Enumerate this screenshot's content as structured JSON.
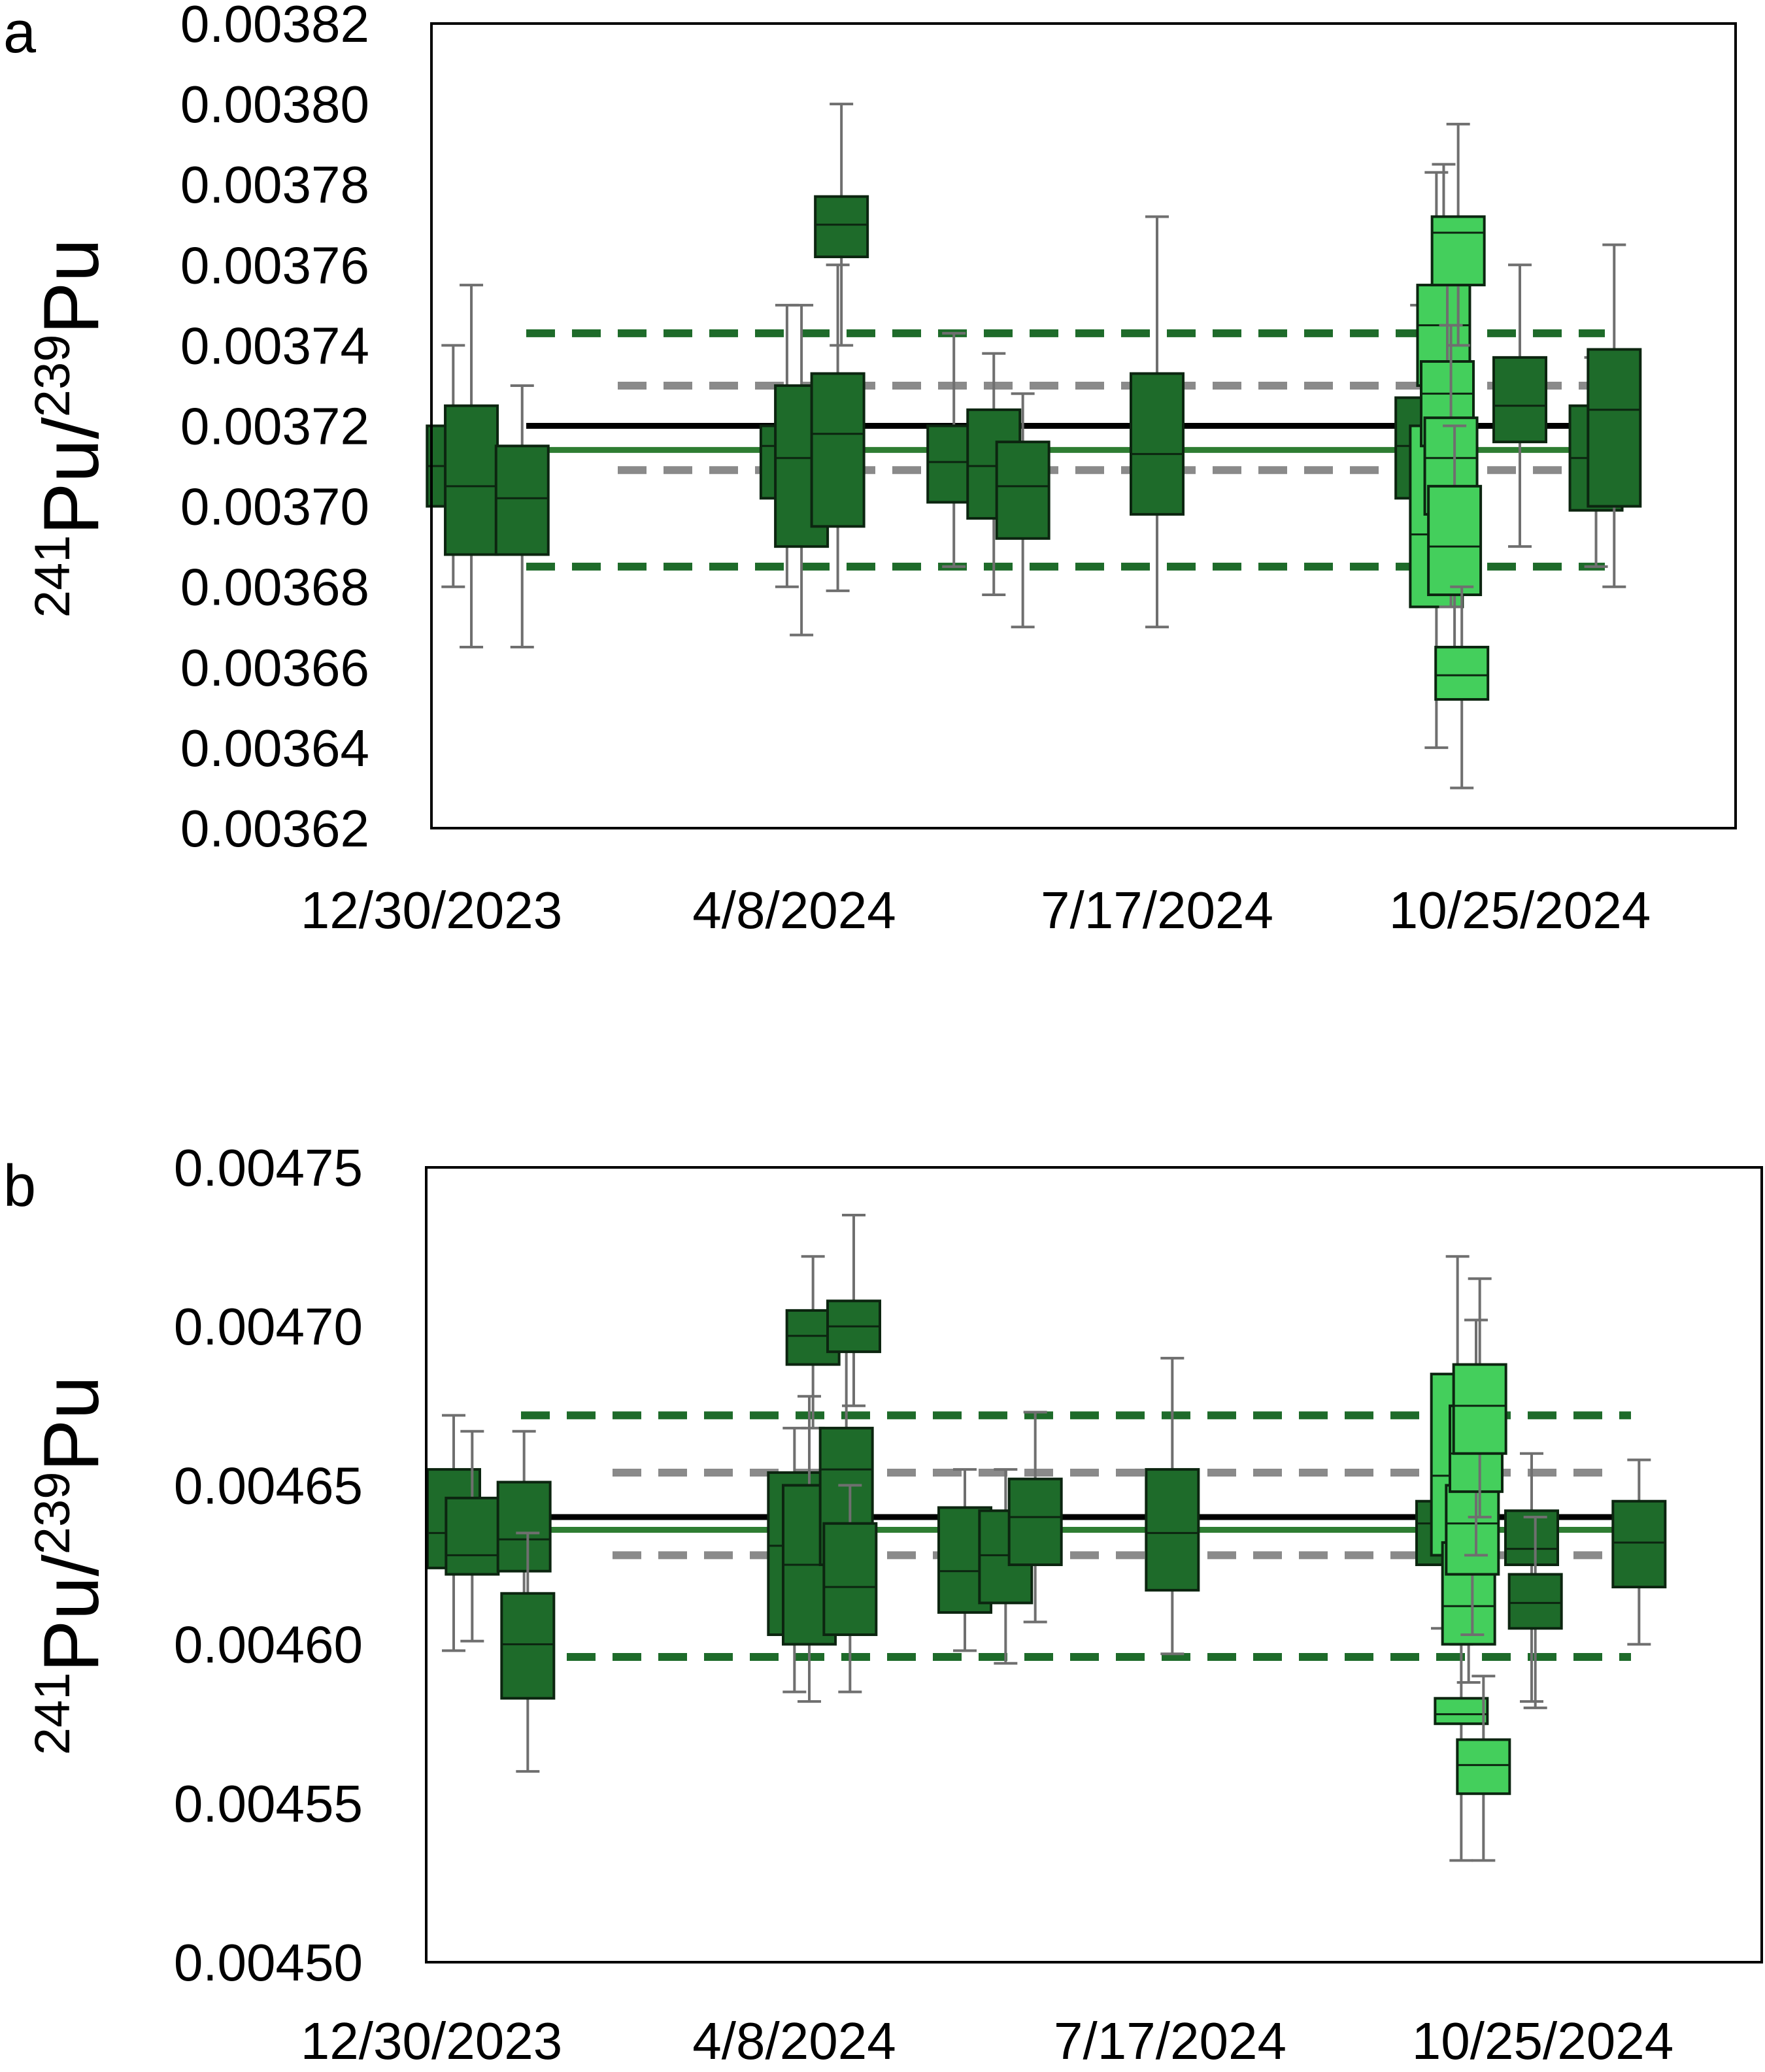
{
  "colors": {
    "dark_green": "#1e6b2a",
    "light_green": "#44cf5c",
    "box_stroke": "#0c2510",
    "whisker": "#6f6f6f",
    "mean_line": "#000000",
    "fit_line": "#2e7d32",
    "limit_inner": "#8a8a8a",
    "limit_outer": "#1e6b2a"
  },
  "chart_data": [
    {
      "panel": "a",
      "type": "box",
      "ylabel": {
        "sup1": "241",
        "mid": "Pu/",
        "sup2": "239",
        "end": "Pu"
      },
      "ylim": [
        0.00362,
        0.00382
      ],
      "yticks": [
        "0.00362",
        "0.00364",
        "0.00366",
        "0.00368",
        "0.00370",
        "0.00372",
        "0.00374",
        "0.00376",
        "0.00378",
        "0.00380",
        "0.00382"
      ],
      "xticks": [
        "12/30/2023",
        "4/8/2024",
        "7/17/2024",
        "10/25/2024"
      ],
      "reference_lines": {
        "mean": 0.00372,
        "fit": 0.003714,
        "inner_limits": [
          0.003709,
          0.00373
        ],
        "outer_limits": [
          0.003685,
          0.003743
        ]
      },
      "boxes": [
        {
          "date": "2024-01-05",
          "q1": 0.0037,
          "median": 0.00371,
          "q3": 0.00372,
          "lo": 0.00368,
          "hi": 0.00374,
          "tone": "dark"
        },
        {
          "date": "2024-01-10",
          "q1": 0.003688,
          "median": 0.003705,
          "q3": 0.003725,
          "lo": 0.003665,
          "hi": 0.003755,
          "tone": "dark"
        },
        {
          "date": "2024-01-24",
          "q1": 0.003688,
          "median": 0.003702,
          "q3": 0.003715,
          "lo": 0.003665,
          "hi": 0.00373,
          "tone": "dark"
        },
        {
          "date": "2024-04-06",
          "q1": 0.003702,
          "median": 0.003715,
          "q3": 0.00372,
          "lo": 0.00368,
          "hi": 0.00375,
          "tone": "dark"
        },
        {
          "date": "2024-04-10",
          "q1": 0.00369,
          "median": 0.003712,
          "q3": 0.00373,
          "lo": 0.003668,
          "hi": 0.00375,
          "tone": "dark"
        },
        {
          "date": "2024-04-20",
          "q1": 0.003695,
          "median": 0.003718,
          "q3": 0.003733,
          "lo": 0.003679,
          "hi": 0.00376,
          "tone": "dark"
        },
        {
          "date": "2024-04-21",
          "q1": 0.003762,
          "median": 0.00377,
          "q3": 0.003777,
          "lo": 0.00374,
          "hi": 0.0038,
          "tone": "dark"
        },
        {
          "date": "2024-05-22",
          "q1": 0.003701,
          "median": 0.003711,
          "q3": 0.00372,
          "lo": 0.003685,
          "hi": 0.003743,
          "tone": "dark"
        },
        {
          "date": "2024-06-02",
          "q1": 0.003697,
          "median": 0.00371,
          "q3": 0.003724,
          "lo": 0.003678,
          "hi": 0.003738,
          "tone": "dark"
        },
        {
          "date": "2024-06-10",
          "q1": 0.003692,
          "median": 0.003705,
          "q3": 0.003716,
          "lo": 0.00367,
          "hi": 0.003728,
          "tone": "dark"
        },
        {
          "date": "2024-07-17",
          "q1": 0.003698,
          "median": 0.003713,
          "q3": 0.003733,
          "lo": 0.00367,
          "hi": 0.003772,
          "tone": "dark"
        },
        {
          "date": "2024-09-28",
          "q1": 0.003702,
          "median": 0.003715,
          "q3": 0.003727,
          "lo": 0.003682,
          "hi": 0.00375,
          "tone": "dark"
        },
        {
          "date": "2024-10-02",
          "q1": 0.003675,
          "median": 0.003693,
          "q3": 0.00372,
          "lo": 0.00364,
          "hi": 0.003783,
          "tone": "light"
        },
        {
          "date": "2024-10-04",
          "q1": 0.00373,
          "median": 0.003745,
          "q3": 0.003755,
          "lo": 0.003712,
          "hi": 0.003785,
          "tone": "light"
        },
        {
          "date": "2024-10-05",
          "q1": 0.003715,
          "median": 0.003728,
          "q3": 0.003736,
          "lo": 0.003693,
          "hi": 0.003765,
          "tone": "light"
        },
        {
          "date": "2024-10-06",
          "q1": 0.003698,
          "median": 0.003712,
          "q3": 0.003722,
          "lo": 0.003675,
          "hi": 0.003745,
          "tone": "light"
        },
        {
          "date": "2024-10-07",
          "q1": 0.003678,
          "median": 0.00369,
          "q3": 0.003705,
          "lo": 0.00366,
          "hi": 0.00372,
          "tone": "light"
        },
        {
          "date": "2024-10-08",
          "q1": 0.003755,
          "median": 0.003768,
          "q3": 0.003772,
          "lo": 0.00374,
          "hi": 0.003795,
          "tone": "light"
        },
        {
          "date": "2024-10-09",
          "q1": 0.003652,
          "median": 0.003658,
          "q3": 0.003665,
          "lo": 0.00363,
          "hi": 0.00368,
          "tone": "light"
        },
        {
          "date": "2024-10-25",
          "q1": 0.003716,
          "median": 0.003725,
          "q3": 0.003737,
          "lo": 0.00369,
          "hi": 0.00376,
          "tone": "dark"
        },
        {
          "date": "2024-11-15",
          "q1": 0.003699,
          "median": 0.003712,
          "q3": 0.003725,
          "lo": 0.003685,
          "hi": 0.003737,
          "tone": "dark"
        },
        {
          "date": "2024-11-20",
          "q1": 0.0037,
          "median": 0.003724,
          "q3": 0.003739,
          "lo": 0.00368,
          "hi": 0.003765,
          "tone": "dark"
        }
      ]
    },
    {
      "panel": "b",
      "type": "box",
      "ylabel": {
        "sup1": "241",
        "mid": "Pu/",
        "sup2": "239",
        "end": "Pu"
      },
      "ylim": [
        0.0045,
        0.00475
      ],
      "yticks": [
        "0.00450",
        "0.00455",
        "0.00460",
        "0.00465",
        "0.00470",
        "0.00475"
      ],
      "xticks": [
        "12/30/2023",
        "4/8/2024",
        "7/17/2024",
        "10/25/2024"
      ],
      "reference_lines": {
        "mean": 0.00464,
        "fit": 0.004636,
        "inner_limits": [
          0.004628,
          0.004654
        ],
        "outer_limits": [
          0.004596,
          0.004672
        ]
      },
      "boxes": [
        {
          "date": "2024-01-05",
          "q1": 0.004624,
          "median": 0.004635,
          "q3": 0.004655,
          "lo": 0.004598,
          "hi": 0.004672,
          "tone": "dark"
        },
        {
          "date": "2024-01-10",
          "q1": 0.004622,
          "median": 0.004628,
          "q3": 0.004646,
          "lo": 0.004601,
          "hi": 0.004667,
          "tone": "dark"
        },
        {
          "date": "2024-01-24",
          "q1": 0.004623,
          "median": 0.004633,
          "q3": 0.004651,
          "lo": 0.004598,
          "hi": 0.004667,
          "tone": "dark"
        },
        {
          "date": "2024-01-25",
          "q1": 0.004583,
          "median": 0.0046,
          "q3": 0.004616,
          "lo": 0.00456,
          "hi": 0.004635,
          "tone": "dark"
        },
        {
          "date": "2024-04-06",
          "q1": 0.004603,
          "median": 0.004631,
          "q3": 0.004654,
          "lo": 0.004585,
          "hi": 0.004668,
          "tone": "dark"
        },
        {
          "date": "2024-04-10",
          "q1": 0.0046,
          "median": 0.004625,
          "q3": 0.00465,
          "lo": 0.004582,
          "hi": 0.004678,
          "tone": "dark"
        },
        {
          "date": "2024-04-11",
          "q1": 0.004688,
          "median": 0.004697,
          "q3": 0.004705,
          "lo": 0.004668,
          "hi": 0.004722,
          "tone": "dark"
        },
        {
          "date": "2024-04-20",
          "q1": 0.004625,
          "median": 0.004655,
          "q3": 0.004668,
          "lo": 0.004605,
          "hi": 0.004705,
          "tone": "dark"
        },
        {
          "date": "2024-04-21",
          "q1": 0.004603,
          "median": 0.004618,
          "q3": 0.004638,
          "lo": 0.004585,
          "hi": 0.00465,
          "tone": "dark"
        },
        {
          "date": "2024-04-22",
          "q1": 0.004692,
          "median": 0.0047,
          "q3": 0.004708,
          "lo": 0.004675,
          "hi": 0.004735,
          "tone": "dark"
        },
        {
          "date": "2024-05-22",
          "q1": 0.00461,
          "median": 0.004623,
          "q3": 0.004643,
          "lo": 0.004598,
          "hi": 0.004655,
          "tone": "dark"
        },
        {
          "date": "2024-06-02",
          "q1": 0.004613,
          "median": 0.004628,
          "q3": 0.004642,
          "lo": 0.004594,
          "hi": 0.004655,
          "tone": "dark"
        },
        {
          "date": "2024-06-10",
          "q1": 0.004625,
          "median": 0.00464,
          "q3": 0.004652,
          "lo": 0.004607,
          "hi": 0.004673,
          "tone": "dark"
        },
        {
          "date": "2024-07-17",
          "q1": 0.004617,
          "median": 0.004635,
          "q3": 0.004655,
          "lo": 0.004597,
          "hi": 0.00469,
          "tone": "dark"
        },
        {
          "date": "2024-09-28",
          "q1": 0.004625,
          "median": 0.004638,
          "q3": 0.004645,
          "lo": 0.004605,
          "hi": 0.004665,
          "tone": "dark"
        },
        {
          "date": "2024-10-02",
          "q1": 0.004628,
          "median": 0.004653,
          "q3": 0.004685,
          "lo": 0.004607,
          "hi": 0.004722,
          "tone": "light"
        },
        {
          "date": "2024-10-03",
          "q1": 0.004575,
          "median": 0.004578,
          "q3": 0.004583,
          "lo": 0.004532,
          "hi": 0.0046,
          "tone": "light"
        },
        {
          "date": "2024-10-05",
          "q1": 0.0046,
          "median": 0.004612,
          "q3": 0.004632,
          "lo": 0.004588,
          "hi": 0.00466,
          "tone": "light"
        },
        {
          "date": "2024-10-06",
          "q1": 0.004622,
          "median": 0.004638,
          "q3": 0.00465,
          "lo": 0.004603,
          "hi": 0.004672,
          "tone": "light"
        },
        {
          "date": "2024-10-07",
          "q1": 0.004648,
          "median": 0.00466,
          "q3": 0.004675,
          "lo": 0.004628,
          "hi": 0.004702,
          "tone": "light"
        },
        {
          "date": "2024-10-08",
          "q1": 0.00466,
          "median": 0.004675,
          "q3": 0.004688,
          "lo": 0.00464,
          "hi": 0.004715,
          "tone": "light"
        },
        {
          "date": "2024-10-09",
          "q1": 0.004553,
          "median": 0.004562,
          "q3": 0.00457,
          "lo": 0.004532,
          "hi": 0.00459,
          "tone": "light"
        },
        {
          "date": "2024-10-22",
          "q1": 0.004625,
          "median": 0.00463,
          "q3": 0.004642,
          "lo": 0.004582,
          "hi": 0.00466,
          "tone": "dark"
        },
        {
          "date": "2024-10-23",
          "q1": 0.004605,
          "median": 0.004613,
          "q3": 0.004622,
          "lo": 0.00458,
          "hi": 0.00464,
          "tone": "dark"
        },
        {
          "date": "2024-11-20",
          "q1": 0.004618,
          "median": 0.004632,
          "q3": 0.004645,
          "lo": 0.0046,
          "hi": 0.004658,
          "tone": "dark"
        }
      ]
    }
  ]
}
